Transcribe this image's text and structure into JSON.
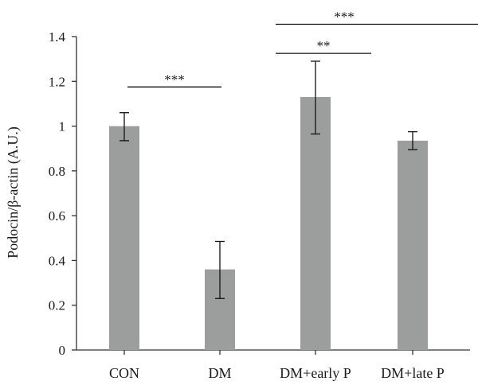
{
  "chart_data": {
    "type": "bar",
    "title": "",
    "xlabel": "",
    "ylabel": "Podocin/β-actin (A.U.)",
    "ylim": [
      0,
      1.4
    ],
    "yticks": [
      0,
      0.2,
      0.4,
      0.6,
      0.8,
      1,
      1.2,
      1.4
    ],
    "ytick_labels": [
      "0",
      "0.2",
      "0.4",
      "0.6",
      "0.8",
      "1",
      "1.2",
      "1.4"
    ],
    "categories": [
      "CON",
      "DM",
      "DM+early P",
      "DM+late P"
    ],
    "values": [
      1.0,
      0.36,
      1.13,
      0.935
    ],
    "error_low": [
      0.935,
      0.23,
      0.965,
      0.895
    ],
    "error_high": [
      1.06,
      0.485,
      1.29,
      0.975
    ],
    "bar_color": "#9b9e9d",
    "grid": false,
    "legend": "none",
    "significance": [
      {
        "from": 0,
        "to": 1,
        "y": 1.175,
        "label": "***"
      },
      {
        "from": 1,
        "to": 2,
        "y": 1.325,
        "label": "**"
      },
      {
        "from": 1,
        "to": 3,
        "y": 1.455,
        "label": "***"
      }
    ]
  }
}
